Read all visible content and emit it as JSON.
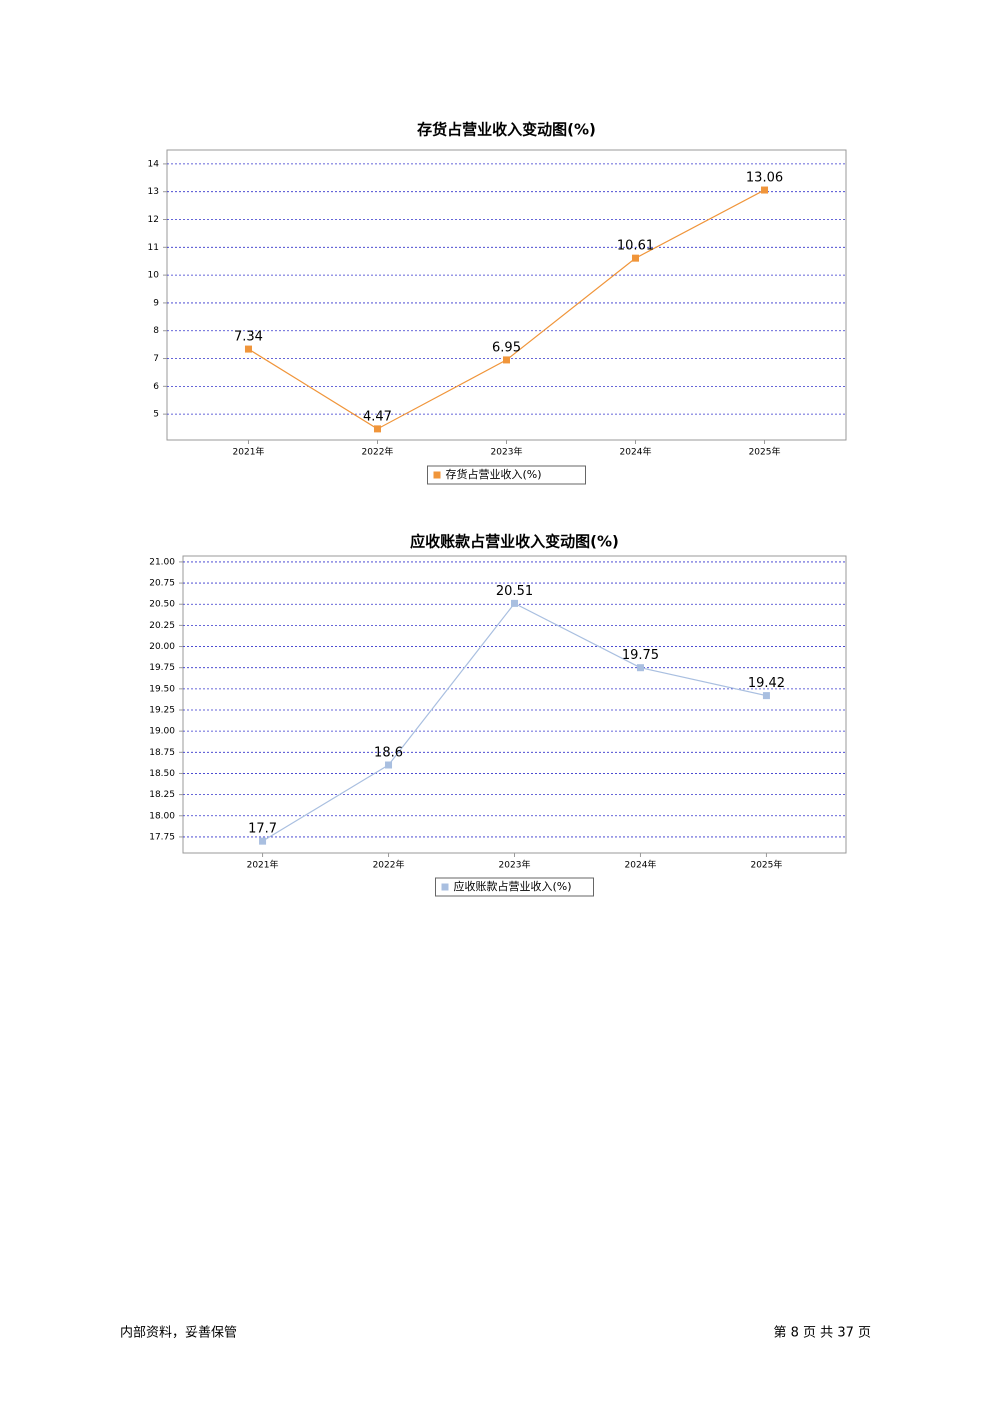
{
  "chart_data": [
    {
      "type": "line",
      "title": "存货占营业收入变动图(%)",
      "categories": [
        "2021年",
        "2022年",
        "2023年",
        "2024年",
        "2025年"
      ],
      "series": [
        {
          "name": "存货占营业收入(%)",
          "color": "#f0953a",
          "values": [
            7.34,
            4.47,
            6.95,
            10.61,
            13.06
          ]
        }
      ],
      "ylim": [
        4.07,
        14.5
      ],
      "yticks": [
        5,
        6,
        7,
        8,
        9,
        10,
        11,
        12,
        13,
        14
      ],
      "grid": true,
      "legend": "bottom"
    },
    {
      "type": "line",
      "title": "应收账款占营业收入变动图(%)",
      "categories": [
        "2021年",
        "2022年",
        "2023年",
        "2024年",
        "2025年"
      ],
      "series": [
        {
          "name": "应收账款占营业收入(%)",
          "color": "#a9bfe0",
          "values": [
            17.7,
            18.6,
            20.51,
            19.75,
            19.42
          ]
        }
      ],
      "ylim": [
        17.56,
        21.07
      ],
      "yticks": [
        17.75,
        {
          "value": 18,
          "label": "18.00"
        },
        18.25,
        {
          "value": 18.5,
          "label": "18.50"
        },
        18.75,
        {
          "value": 19,
          "label": "19.00"
        },
        19.25,
        {
          "value": 19.5,
          "label": "19.50"
        },
        19.75,
        {
          "value": 20,
          "label": "20.00"
        },
        20.25,
        {
          "value": 20.5,
          "label": "20.50"
        },
        20.75,
        {
          "value": 21,
          "label": "21.00"
        }
      ],
      "grid": true,
      "legend": "bottom"
    }
  ],
  "footer": {
    "left": "内部资料，妥善保管",
    "right": "第 8 页 共 37 页"
  }
}
